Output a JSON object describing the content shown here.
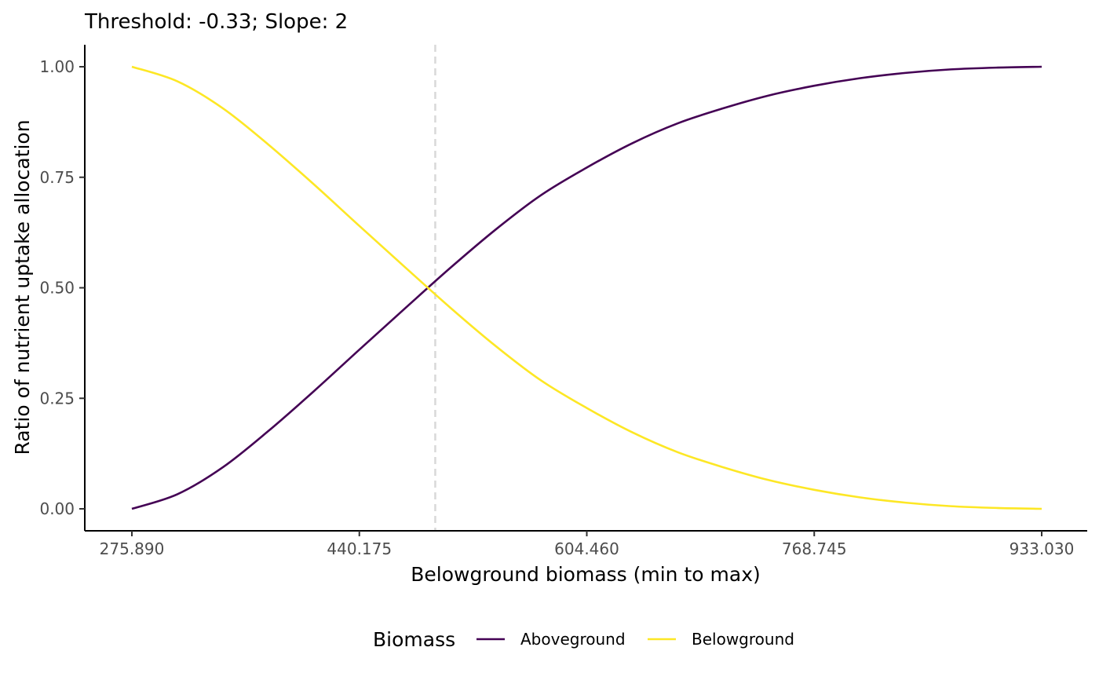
{
  "chart_data": {
    "type": "line",
    "title": "Threshold: -0.33; Slope: 2",
    "xlabel": "Belowground biomass (min to max)",
    "ylabel": "Ratio of nutrient uptake allocation",
    "xlim": [
      275.89,
      933.03
    ],
    "ylim": [
      0,
      1
    ],
    "x_ticks": [
      "275.890",
      "440.175",
      "604.460",
      "768.745",
      "933.030"
    ],
    "x_tick_values": [
      275.89,
      440.175,
      604.46,
      768.745,
      933.03
    ],
    "y_ticks": [
      "0.00",
      "0.25",
      "0.50",
      "0.75",
      "1.00"
    ],
    "y_tick_values": [
      0,
      0.25,
      0.5,
      0.75,
      1.0
    ],
    "threshold_x": 495,
    "grid": false,
    "legend": {
      "title": "Biomass",
      "position": "bottom",
      "entries": [
        "Aboveground",
        "Belowground"
      ]
    },
    "series": [
      {
        "name": "Aboveground",
        "color": "#440154",
        "x": [
          275.89,
          308.75,
          341.6,
          374.46,
          407.32,
          440.18,
          473.03,
          505.89,
          538.75,
          571.6,
          604.46,
          637.32,
          670.17,
          703.03,
          735.89,
          768.75,
          801.6,
          834.46,
          867.32,
          900.17,
          933.03
        ],
        "values": [
          0.0,
          0.033,
          0.094,
          0.176,
          0.266,
          0.36,
          0.453,
          0.545,
          0.632,
          0.71,
          0.772,
          0.827,
          0.872,
          0.906,
          0.935,
          0.957,
          0.974,
          0.986,
          0.994,
          0.998,
          1.0
        ]
      },
      {
        "name": "Belowground",
        "color": "#FDE725",
        "x": [
          275.89,
          308.75,
          341.6,
          374.46,
          407.32,
          440.18,
          473.03,
          505.89,
          538.75,
          571.6,
          604.46,
          637.32,
          670.17,
          703.03,
          735.89,
          768.75,
          801.6,
          834.46,
          867.32,
          900.17,
          933.03
        ],
        "values": [
          1.0,
          0.967,
          0.906,
          0.824,
          0.734,
          0.64,
          0.547,
          0.455,
          0.368,
          0.29,
          0.228,
          0.173,
          0.128,
          0.094,
          0.065,
          0.043,
          0.026,
          0.014,
          0.006,
          0.002,
          0.0
        ]
      }
    ]
  }
}
